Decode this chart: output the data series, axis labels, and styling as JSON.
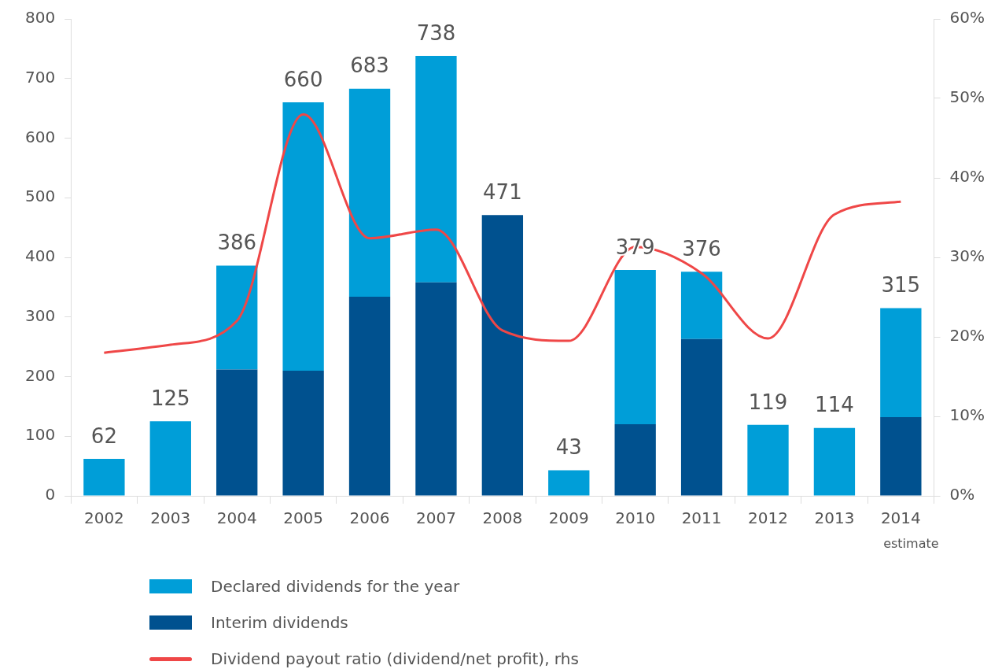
{
  "chart_data": {
    "type": "bar",
    "stacked": true,
    "categories": [
      "2002",
      "2003",
      "2004",
      "2005",
      "2006",
      "2007",
      "2008",
      "2009",
      "2010",
      "2011",
      "2012",
      "2013",
      "2014"
    ],
    "series": [
      {
        "name": "Interim dividends",
        "color": "#00518f",
        "values": [
          null,
          null,
          212,
          210,
          334,
          358,
          471,
          null,
          120,
          263,
          null,
          null,
          132
        ]
      },
      {
        "name": "Declared dividends for the year",
        "color": "#009ed8",
        "values": [
          62,
          125,
          174,
          450,
          349,
          380,
          null,
          43,
          259,
          113,
          119,
          114,
          183
        ]
      },
      {
        "name": "Dividend payout ratio (dividend/net profit), rhs",
        "type": "line",
        "axis": "y2",
        "color": "#ef4747",
        "values": [
          18,
          19,
          22,
          48,
          32.4,
          33.5,
          20.8,
          19.5,
          31.3,
          28,
          19.8,
          35.4,
          37
        ]
      }
    ],
    "totals": [
      "62",
      "125",
      "386",
      "660",
      "683",
      "738",
      "471",
      "43",
      "379",
      "376",
      "119",
      "114",
      "315"
    ],
    "ylim": [
      0,
      800
    ],
    "yticks": [
      0,
      100,
      200,
      300,
      400,
      500,
      600,
      700,
      800
    ],
    "y2lim": [
      0,
      60
    ],
    "y2ticks": [
      {
        "value": 0,
        "label": "0%"
      },
      {
        "value": 10,
        "label": "10%"
      },
      {
        "value": 20,
        "label": "20%"
      },
      {
        "value": 30,
        "label": "30%"
      },
      {
        "value": 40,
        "label": "40%"
      },
      {
        "value": 50,
        "label": "50%"
      },
      {
        "value": 60,
        "label": "60%"
      }
    ],
    "annotations": [
      "estimate"
    ],
    "grid": false,
    "legend": "bottom",
    "marker": "none",
    "line_style": "solid"
  }
}
